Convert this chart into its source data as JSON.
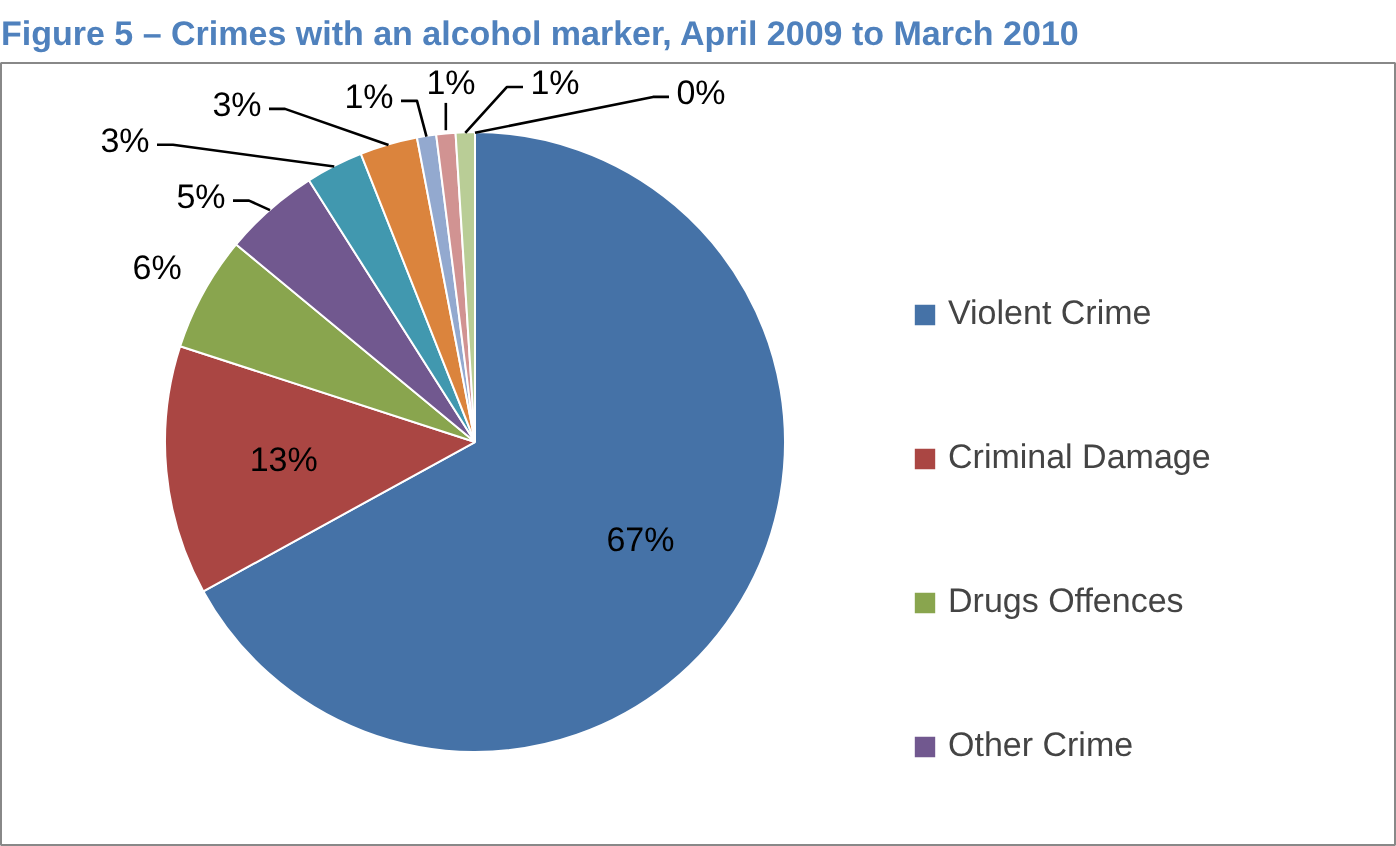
{
  "chart_data": {
    "type": "pie",
    "title": "Figure 5 – Crimes with an alcohol marker, April 2009 to March 2010",
    "categories": [
      "Violent Crime",
      "Criminal Damage",
      "Drugs Offences",
      "Other Crime",
      null,
      null,
      null,
      null,
      null,
      null
    ],
    "values": [
      67,
      13,
      6,
      5,
      3,
      3,
      1,
      1,
      1,
      0
    ],
    "colors": [
      "#4572a7",
      "#aa4643",
      "#89a54e",
      "#71588f",
      "#4198af",
      "#db843d",
      "#93a9cf",
      "#d19392",
      "#b9cd96",
      "#a99bbd"
    ],
    "value_labels": [
      "67%",
      "13%",
      "6%",
      "5%",
      "3%",
      "3%",
      "1%",
      "1%",
      "1%",
      "0%"
    ],
    "legend": "right"
  }
}
